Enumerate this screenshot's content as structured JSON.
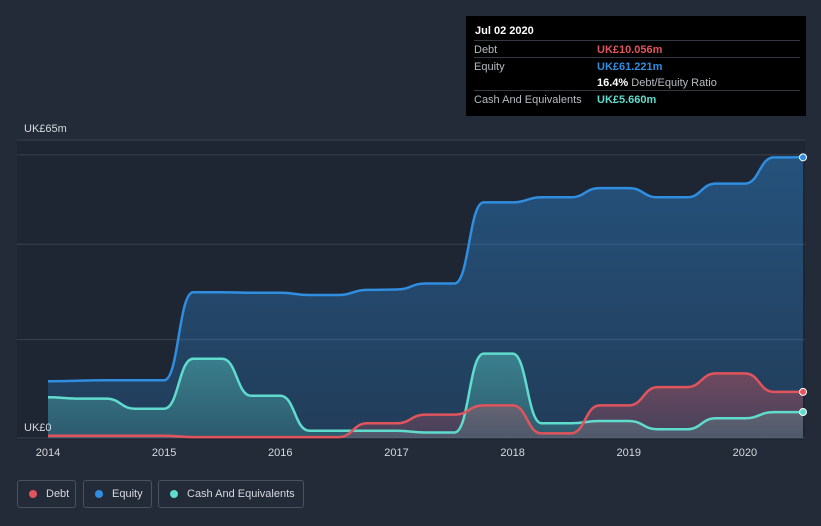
{
  "chart_data": {
    "type": "area",
    "title": "",
    "xlabel": "",
    "ylabel": "",
    "y_unit": "UK£m",
    "ylim": [
      0,
      65
    ],
    "xlim": [
      2014.0,
      2020.5
    ],
    "y_tick_labels": {
      "top": "UK£65m",
      "bottom": "UK£0"
    },
    "x_ticks": [
      2014,
      2015,
      2016,
      2017,
      2018,
      2019,
      2020
    ],
    "grid": true,
    "legend_position": "bottom-left",
    "series": [
      {
        "name": "Equity",
        "color": "#2f8ee0",
        "points": [
          [
            2014.0,
            12.4
          ],
          [
            2014.5,
            12.6
          ],
          [
            2015.0,
            12.6
          ],
          [
            2015.25,
            31.8
          ],
          [
            2015.5,
            31.8
          ],
          [
            2015.75,
            31.7
          ],
          [
            2016.0,
            31.7
          ],
          [
            2016.25,
            31.2
          ],
          [
            2016.5,
            31.2
          ],
          [
            2016.75,
            32.3
          ],
          [
            2017.0,
            32.4
          ],
          [
            2017.25,
            33.7
          ],
          [
            2017.5,
            33.7
          ],
          [
            2017.75,
            51.4
          ],
          [
            2018.0,
            51.4
          ],
          [
            2018.25,
            52.5
          ],
          [
            2018.5,
            52.5
          ],
          [
            2018.75,
            54.5
          ],
          [
            2019.0,
            54.5
          ],
          [
            2019.25,
            52.5
          ],
          [
            2019.5,
            52.5
          ],
          [
            2019.75,
            55.5
          ],
          [
            2020.0,
            55.5
          ],
          [
            2020.25,
            61.2
          ],
          [
            2020.5,
            61.221
          ]
        ]
      },
      {
        "name": "Cash And Equivalents",
        "color": "#5fdccd",
        "points": [
          [
            2014.0,
            8.9
          ],
          [
            2014.25,
            8.6
          ],
          [
            2014.5,
            8.6
          ],
          [
            2014.75,
            6.4
          ],
          [
            2015.0,
            6.4
          ],
          [
            2015.25,
            17.3
          ],
          [
            2015.5,
            17.3
          ],
          [
            2015.75,
            9.2
          ],
          [
            2016.0,
            9.2
          ],
          [
            2016.25,
            1.6
          ],
          [
            2016.5,
            1.6
          ],
          [
            2016.75,
            1.6
          ],
          [
            2017.0,
            1.6
          ],
          [
            2017.25,
            1.2
          ],
          [
            2017.5,
            1.2
          ],
          [
            2017.75,
            18.4
          ],
          [
            2018.0,
            18.4
          ],
          [
            2018.25,
            3.2
          ],
          [
            2018.5,
            3.2
          ],
          [
            2018.75,
            3.7
          ],
          [
            2019.0,
            3.7
          ],
          [
            2019.25,
            1.9
          ],
          [
            2019.5,
            1.9
          ],
          [
            2019.75,
            4.3
          ],
          [
            2020.0,
            4.3
          ],
          [
            2020.25,
            5.66
          ],
          [
            2020.5,
            5.66
          ]
        ]
      },
      {
        "name": "Debt",
        "color": "#e2545c",
        "points": [
          [
            2014.0,
            0.5
          ],
          [
            2015.0,
            0.5
          ],
          [
            2015.25,
            0.2
          ],
          [
            2016.0,
            0.2
          ],
          [
            2016.5,
            0.2
          ],
          [
            2016.75,
            3.2
          ],
          [
            2017.0,
            3.2
          ],
          [
            2017.25,
            5.1
          ],
          [
            2017.5,
            5.1
          ],
          [
            2017.75,
            7.1
          ],
          [
            2018.0,
            7.1
          ],
          [
            2018.25,
            1.0
          ],
          [
            2018.5,
            1.0
          ],
          [
            2018.75,
            7.1
          ],
          [
            2019.0,
            7.1
          ],
          [
            2019.25,
            11.1
          ],
          [
            2019.5,
            11.1
          ],
          [
            2019.75,
            14.1
          ],
          [
            2020.0,
            14.1
          ],
          [
            2020.25,
            10.056
          ],
          [
            2020.5,
            10.056
          ]
        ]
      }
    ]
  },
  "tooltip": {
    "date": "Jul 02 2020",
    "rows": [
      {
        "label": "Debt",
        "value": "UK£10.056m",
        "color": "#e2545c"
      },
      {
        "label": "Equity",
        "value": "UK£61.221m",
        "color": "#2f8ee0"
      },
      {
        "label": "",
        "value": "16.4%",
        "suffix": "Debt/Equity Ratio",
        "color": "#ffffff"
      },
      {
        "label": "Cash And Equivalents",
        "value": "UK£5.660m",
        "color": "#5fdccd"
      }
    ]
  },
  "legend": [
    {
      "label": "Debt",
      "color": "#e2545c"
    },
    {
      "label": "Equity",
      "color": "#2f8ee0"
    },
    {
      "label": "Cash And Equivalents",
      "color": "#5fdccd"
    }
  ]
}
